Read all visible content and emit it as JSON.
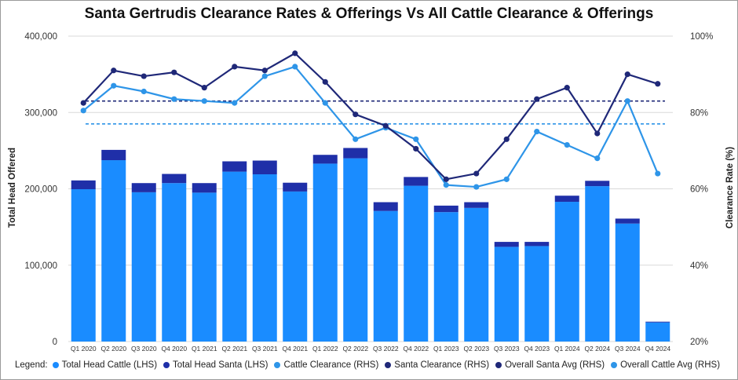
{
  "chart_data": {
    "type": "bar",
    "title": "Santa Gertrudis Clearance Rates & Offerings Vs All Cattle Clearance & Offerings",
    "ylabel_left": "Total Head Offered",
    "ylabel_right": "Clearance Rate (%)",
    "ylim_left": [
      0,
      400000
    ],
    "ylim_right": [
      20,
      100
    ],
    "left_ticks": [
      "0",
      "100,000",
      "200,000",
      "300,000",
      "400,000"
    ],
    "right_ticks": [
      "20%",
      "40%",
      "60%",
      "80%",
      "100%"
    ],
    "grid": "horizontal",
    "legend_position": "bottom",
    "categories": [
      "Q1 2020",
      "Q2 2020",
      "Q3 2020",
      "Q4 2020",
      "Q1 2021",
      "Q2 2021",
      "Q3 2021",
      "Q4 2021",
      "Q1 2022",
      "Q2 2022",
      "Q3 2022",
      "Q4 2022",
      "Q1 2023",
      "Q2 2023",
      "Q3 2023",
      "Q4 2023",
      "Q1 2024",
      "Q2 2024",
      "Q3 2024",
      "Q4 2024"
    ],
    "series": [
      {
        "name": "Total Head Cattle (LHS)",
        "kind": "bar",
        "axis": "left",
        "color": "#1a8cff",
        "values": [
          199500,
          237500,
          195500,
          207500,
          195000,
          222500,
          219000,
          196500,
          233000,
          240000,
          171000,
          204000,
          169500,
          175000,
          124000,
          125000,
          183000,
          203500,
          154500,
          25000
        ]
      },
      {
        "name": "Total Head Santa (LHS)",
        "kind": "bar",
        "axis": "left",
        "color": "#1f2fa8",
        "values": [
          11500,
          13500,
          12000,
          12000,
          12500,
          13500,
          18000,
          11500,
          11500,
          13500,
          11500,
          11500,
          8500,
          7500,
          6500,
          5500,
          8000,
          7000,
          6500,
          1000
        ]
      },
      {
        "name": "Cattle Clearance (RHS)",
        "kind": "line",
        "axis": "right",
        "color": "#2e95e8",
        "values": [
          80.5,
          87.0,
          85.5,
          83.5,
          83.0,
          82.5,
          89.5,
          92.0,
          82.5,
          73.0,
          76.0,
          73.0,
          61.0,
          60.5,
          62.5,
          75.0,
          71.5,
          68.0,
          83.0,
          64.0
        ]
      },
      {
        "name": "Santa Clearance (RHS)",
        "kind": "line",
        "axis": "right",
        "color": "#1f2878",
        "values": [
          82.5,
          91.0,
          89.5,
          90.5,
          86.5,
          92.0,
          91.0,
          95.5,
          88.0,
          79.5,
          76.5,
          70.5,
          62.5,
          64.0,
          73.0,
          83.5,
          86.5,
          74.5,
          90.0,
          87.5
        ]
      },
      {
        "name": "Overall Santa Avg (RHS)",
        "kind": "refline",
        "axis": "right",
        "color": "#1f2878",
        "value": 83.0
      },
      {
        "name": "Overall Cattle Avg (RHS)",
        "kind": "refline",
        "axis": "right",
        "color": "#2e95e8",
        "value": 77.0
      }
    ]
  },
  "legend_label": "Legend:",
  "colors": {
    "cattle_bar": "#1a8cff",
    "santa_bar": "#1f2fa8",
    "cattle_line": "#2e95e8",
    "santa_line": "#1f2878",
    "grid": "#d9d9d9"
  }
}
